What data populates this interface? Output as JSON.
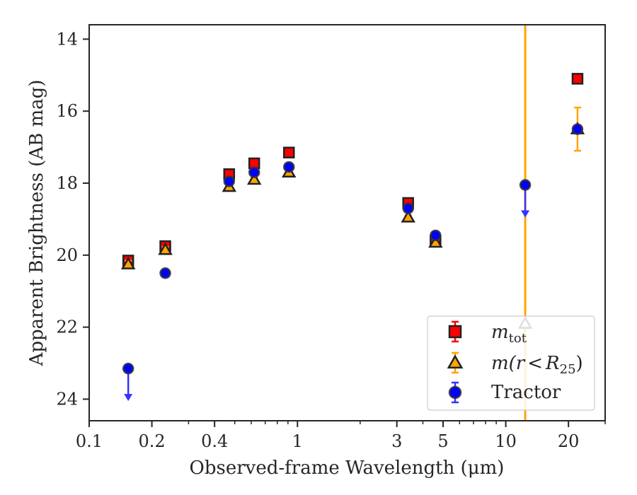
{
  "chart_data": {
    "type": "scatter",
    "xlabel": "Observed-frame Wavelength (μm)",
    "ylabel": "Apparent Brightness (AB mag)",
    "x_scale": "log",
    "xlim": [
      0.1,
      30
    ],
    "ylim": [
      24.6,
      13.6
    ],
    "y_inverted": true,
    "x_tick_labels": [
      "0.1",
      "0.2",
      "0.4",
      "1",
      "3",
      "5",
      "10",
      "20"
    ],
    "x_tick_values": [
      0.1,
      0.2,
      0.4,
      1,
      3,
      5,
      10,
      20
    ],
    "y_tick_values": [
      14,
      16,
      18,
      20,
      22,
      24
    ],
    "y_tick_labels": [
      "14",
      "16",
      "18",
      "20",
      "22",
      "24"
    ],
    "vertical_line": {
      "x": 12.4,
      "color": "#ffa500"
    },
    "legend_position": "lower right",
    "series": [
      {
        "name": "m_tot",
        "legend_main": "m",
        "legend_sub": "tot",
        "marker": "square",
        "color": "#ff0000",
        "error_color": "#ff0000",
        "x": [
          0.154,
          0.232,
          0.47,
          0.62,
          0.91,
          3.4,
          4.6,
          22.1
        ],
        "y": [
          20.15,
          19.75,
          17.75,
          17.45,
          17.15,
          18.55,
          19.6,
          15.1
        ],
        "yerr": [
          0.12,
          0.1,
          0.07,
          0.05,
          0.05,
          0.06,
          0.1,
          0.08
        ],
        "upper_limit": [
          false,
          false,
          false,
          false,
          false,
          false,
          false,
          false
        ]
      },
      {
        "name": "m(r < R25)",
        "legend_prefix": "m(",
        "legend_mid": "r",
        "legend_lt": "<",
        "legend_R": "R",
        "legend_sub": "25",
        "legend_suffix": ")",
        "marker": "triangle",
        "color": "#ffa500",
        "error_color": "#ffa500",
        "x": [
          0.154,
          0.232,
          0.47,
          0.62,
          0.91,
          3.4,
          4.6,
          12.4,
          22.1
        ],
        "y": [
          20.25,
          19.85,
          18.1,
          17.9,
          17.7,
          18.95,
          19.65,
          21.9,
          16.5
        ],
        "yerr": [
          0.1,
          0.08,
          0.07,
          0.05,
          0.05,
          0.06,
          0.08,
          0.0,
          0.6
        ],
        "upper_limit": [
          false,
          false,
          false,
          false,
          false,
          false,
          false,
          false,
          false
        ]
      },
      {
        "name": "Tractor",
        "marker": "circle",
        "color": "#0000ff",
        "error_color": "#3333ff",
        "x": [
          0.154,
          0.232,
          0.47,
          0.62,
          0.91,
          3.4,
          4.6,
          12.4,
          22.1
        ],
        "y": [
          23.15,
          20.5,
          17.95,
          17.7,
          17.55,
          18.7,
          19.45,
          18.05,
          16.5
        ],
        "yerr": [
          0.0,
          0.05,
          0.07,
          0.05,
          0.05,
          0.06,
          0.1,
          0.0,
          0.05
        ],
        "upper_limit": [
          true,
          false,
          false,
          false,
          false,
          false,
          false,
          true,
          false
        ]
      }
    ]
  }
}
